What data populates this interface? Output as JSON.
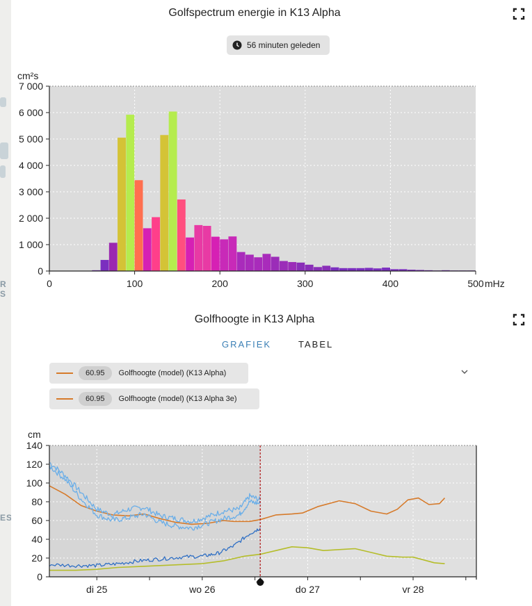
{
  "spectrum": {
    "title": "Golfspectrum energie in K13 Alpha",
    "badge_text": "56 minuten geleden",
    "chart_data": {
      "type": "bar",
      "xlabel": "mHz",
      "ylabel": "cm²s",
      "xlim": [
        0,
        500
      ],
      "ylim": [
        0,
        7000
      ],
      "x_ticks": [
        0,
        100,
        200,
        300,
        400,
        500
      ],
      "x_tick_labels": [
        "0",
        "100",
        "200",
        "300",
        "400",
        "500"
      ],
      "y_ticks": [
        0,
        1000,
        2000,
        3000,
        4000,
        5000,
        6000,
        7000
      ],
      "y_tick_labels": [
        "0",
        "1 000",
        "2 000",
        "3 000",
        "4 000",
        "5 000",
        "6 000",
        "7 000"
      ],
      "grid": true,
      "bin_width": 10,
      "bins": [
        {
          "x": 50,
          "value": 30,
          "color": "#7b2fbf"
        },
        {
          "x": 60,
          "value": 420,
          "color": "#7b2fbf"
        },
        {
          "x": 70,
          "value": 1070,
          "color": "#9b27b0"
        },
        {
          "x": 80,
          "value": 5050,
          "color": "#d4c336"
        },
        {
          "x": 90,
          "value": 5920,
          "color": "#b5ec4e"
        },
        {
          "x": 100,
          "value": 3440,
          "color": "#ff6f4f"
        },
        {
          "x": 110,
          "value": 1620,
          "color": "#d620b4"
        },
        {
          "x": 120,
          "value": 2040,
          "color": "#ff3f8a"
        },
        {
          "x": 130,
          "value": 5150,
          "color": "#d4c336"
        },
        {
          "x": 140,
          "value": 6040,
          "color": "#b5ec4e"
        },
        {
          "x": 150,
          "value": 2710,
          "color": "#ff4f7f"
        },
        {
          "x": 160,
          "value": 1270,
          "color": "#d620b4"
        },
        {
          "x": 170,
          "value": 1740,
          "color": "#e83aa4"
        },
        {
          "x": 180,
          "value": 1710,
          "color": "#e83aa4"
        },
        {
          "x": 190,
          "value": 1300,
          "color": "#d620b4"
        },
        {
          "x": 200,
          "value": 1200,
          "color": "#c82ab8"
        },
        {
          "x": 210,
          "value": 1310,
          "color": "#c82ab8"
        },
        {
          "x": 220,
          "value": 720,
          "color": "#a92bbb"
        },
        {
          "x": 230,
          "value": 620,
          "color": "#a92bbb"
        },
        {
          "x": 240,
          "value": 520,
          "color": "#a92bbb"
        },
        {
          "x": 250,
          "value": 650,
          "color": "#a92bbb"
        },
        {
          "x": 260,
          "value": 540,
          "color": "#9b2db8"
        },
        {
          "x": 270,
          "value": 380,
          "color": "#9b2db8"
        },
        {
          "x": 280,
          "value": 340,
          "color": "#9b2db8"
        },
        {
          "x": 290,
          "value": 320,
          "color": "#8a2fb8"
        },
        {
          "x": 300,
          "value": 240,
          "color": "#8a2fb8"
        },
        {
          "x": 310,
          "value": 150,
          "color": "#8a2fb8"
        },
        {
          "x": 320,
          "value": 200,
          "color": "#8a2fb8"
        },
        {
          "x": 330,
          "value": 140,
          "color": "#7b2fbf"
        },
        {
          "x": 340,
          "value": 110,
          "color": "#7b2fbf"
        },
        {
          "x": 350,
          "value": 110,
          "color": "#7b2fbf"
        },
        {
          "x": 360,
          "value": 110,
          "color": "#7b2fbf"
        },
        {
          "x": 370,
          "value": 120,
          "color": "#7b2fbf"
        },
        {
          "x": 380,
          "value": 100,
          "color": "#7b2fbf"
        },
        {
          "x": 390,
          "value": 130,
          "color": "#7b2fbf"
        },
        {
          "x": 400,
          "value": 70,
          "color": "#7b2fbf"
        },
        {
          "x": 410,
          "value": 70,
          "color": "#7b2fbf"
        },
        {
          "x": 420,
          "value": 50,
          "color": "#7b2fbf"
        },
        {
          "x": 430,
          "value": 40,
          "color": "#7b2fbf"
        },
        {
          "x": 440,
          "value": 30,
          "color": "#7b2fbf"
        },
        {
          "x": 450,
          "value": 20,
          "color": "#7b2fbf"
        },
        {
          "x": 460,
          "value": 30,
          "color": "#7b2fbf"
        },
        {
          "x": 470,
          "value": 20,
          "color": "#7b2fbf"
        },
        {
          "x": 480,
          "value": 20,
          "color": "#7b2fbf"
        },
        {
          "x": 490,
          "value": 20,
          "color": "#7b2fbf"
        }
      ]
    }
  },
  "waveheight": {
    "title": "Golfhoogte in K13 Alpha",
    "tabs": [
      {
        "label": "GRAFIEK",
        "active": true
      },
      {
        "label": "TABEL",
        "active": false
      }
    ],
    "legend": [
      {
        "value": "60.95",
        "label": "Golfhoogte (model) (K13 Alpha)",
        "color": "#d67a2a"
      },
      {
        "value": "60.95",
        "label": "Golfhoogte (model) (K13 Alpha 3e)",
        "color": "#d67a2a"
      }
    ],
    "chart_data": {
      "type": "line",
      "ylabel": "cm",
      "ylim": [
        0,
        140
      ],
      "y_ticks": [
        0,
        20,
        40,
        60,
        80,
        100,
        120,
        140
      ],
      "y_tick_labels": [
        "0",
        "20",
        "40",
        "60",
        "80",
        "100",
        "120",
        "140"
      ],
      "x_unit": "day",
      "xlim": [
        24.55,
        28.6
      ],
      "x_ticks": [
        25,
        26,
        27,
        28
      ],
      "x_tick_labels": [
        "di 25",
        "wo 26",
        "do 27",
        "vr 28"
      ],
      "now_x": 26.55,
      "grid": true,
      "series": [
        {
          "name": "Golfhoogte (model) (K13 Alpha)",
          "color": "#d67a2a",
          "width": 1.6,
          "points": [
            [
              24.55,
              97
            ],
            [
              24.7,
              88
            ],
            [
              24.85,
              76
            ],
            [
              25.0,
              70
            ],
            [
              25.15,
              66
            ],
            [
              25.3,
              65
            ],
            [
              25.45,
              67
            ],
            [
              25.6,
              62
            ],
            [
              25.75,
              58
            ],
            [
              25.9,
              56
            ],
            [
              26.05,
              57
            ],
            [
              26.2,
              60
            ],
            [
              26.3,
              59
            ],
            [
              26.45,
              59
            ],
            [
              26.55,
              61
            ],
            [
              26.7,
              66
            ],
            [
              26.85,
              67
            ],
            [
              26.95,
              68
            ],
            [
              27.1,
              75
            ],
            [
              27.3,
              81
            ],
            [
              27.45,
              78
            ],
            [
              27.6,
              70
            ],
            [
              27.75,
              67
            ],
            [
              27.85,
              72
            ],
            [
              27.95,
              82
            ],
            [
              28.05,
              84
            ],
            [
              28.15,
              77
            ],
            [
              28.25,
              78
            ],
            [
              28.3,
              84
            ]
          ]
        },
        {
          "name": "",
          "color": "#b5bd2a",
          "width": 1.6,
          "points": [
            [
              24.55,
              7
            ],
            [
              24.8,
              7
            ],
            [
              25.0,
              8
            ],
            [
              25.2,
              10
            ],
            [
              25.4,
              11
            ],
            [
              25.6,
              12
            ],
            [
              25.8,
              13
            ],
            [
              26.0,
              14
            ],
            [
              26.2,
              17
            ],
            [
              26.4,
              22
            ],
            [
              26.55,
              24
            ],
            [
              26.7,
              28
            ],
            [
              26.85,
              32
            ],
            [
              27.0,
              31
            ],
            [
              27.15,
              28
            ],
            [
              27.3,
              29
            ],
            [
              27.45,
              30
            ],
            [
              27.6,
              26
            ],
            [
              27.75,
              22
            ],
            [
              27.9,
              21
            ],
            [
              28.0,
              21
            ],
            [
              28.1,
              18
            ],
            [
              28.2,
              15
            ],
            [
              28.3,
              14
            ]
          ]
        },
        {
          "name": "",
          "color": "#6aaee8",
          "width": 1.3,
          "noise": 3,
          "points": [
            [
              24.55,
              122
            ],
            [
              24.7,
              108
            ],
            [
              24.85,
              90
            ],
            [
              25.0,
              72
            ],
            [
              25.15,
              66
            ],
            [
              25.3,
              72
            ],
            [
              25.45,
              74
            ],
            [
              25.6,
              65
            ],
            [
              25.75,
              62
            ],
            [
              25.9,
              59
            ],
            [
              26.05,
              64
            ],
            [
              26.2,
              70
            ],
            [
              26.35,
              72
            ],
            [
              26.45,
              86
            ],
            [
              26.55,
              82
            ]
          ]
        },
        {
          "name": "",
          "color": "#6aaee8",
          "width": 1.3,
          "noise": 3,
          "points": [
            [
              24.55,
              118
            ],
            [
              24.7,
              104
            ],
            [
              24.85,
              83
            ],
            [
              25.0,
              66
            ],
            [
              25.15,
              60
            ],
            [
              25.3,
              63
            ],
            [
              25.45,
              67
            ],
            [
              25.6,
              58
            ],
            [
              25.75,
              54
            ],
            [
              25.9,
              52
            ],
            [
              26.05,
              57
            ],
            [
              26.2,
              62
            ],
            [
              26.35,
              66
            ],
            [
              26.45,
              80
            ],
            [
              26.55,
              78
            ]
          ]
        },
        {
          "name": "",
          "color": "#2f6fc4",
          "width": 1.3,
          "noise": 2,
          "points": [
            [
              24.55,
              13
            ],
            [
              24.8,
              12
            ],
            [
              25.0,
              12
            ],
            [
              25.2,
              14
            ],
            [
              25.4,
              17
            ],
            [
              25.6,
              19
            ],
            [
              25.8,
              21
            ],
            [
              26.0,
              22
            ],
            [
              26.15,
              25
            ],
            [
              26.3,
              33
            ],
            [
              26.45,
              46
            ],
            [
              26.55,
              52
            ]
          ]
        }
      ]
    }
  }
}
